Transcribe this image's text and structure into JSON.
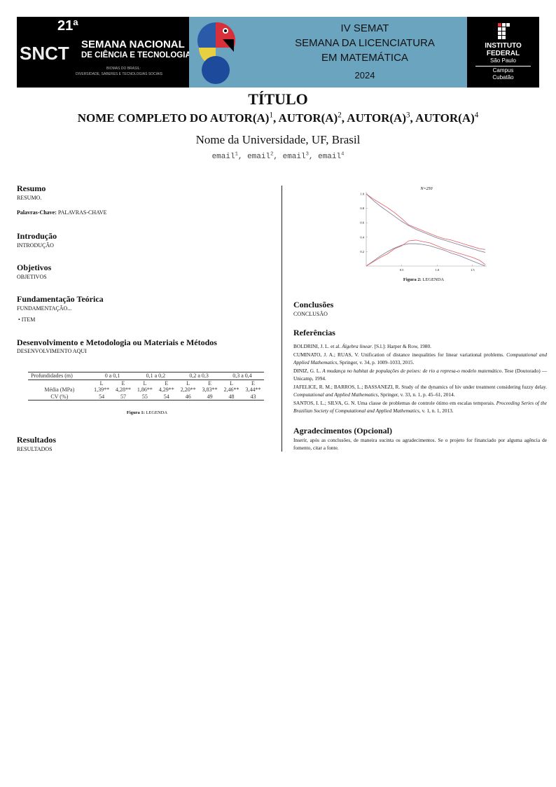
{
  "banner": {
    "edition": "21ª",
    "acronym": "SNCT",
    "snct_line1": "SEMANA NACIONAL",
    "snct_line2": "DE CIÊNCIA E TECNOLOGIA",
    "snct_line3": "BIOMAS DO BRASIL:",
    "snct_line4": "DIVERSIDADE, SABERES E TECNOLOGIAS SOCIAIS",
    "event_line1": "IV SEMAT",
    "event_line2": "SEMANA DA LICENCIATURA",
    "event_line3": "EM MATEMÁTICA",
    "event_year": "2024",
    "if_line1": "INSTITUTO",
    "if_line2": "FEDERAL",
    "if_line3": "São Paulo",
    "if_campus1": "Campus",
    "if_campus2": "Cubatão",
    "colors": {
      "left": "#000000",
      "middle": "#6aa4bf",
      "right": "#000000"
    }
  },
  "header": {
    "title": "TÍTULO",
    "authors": [
      {
        "name": "NOME COMPLETO DO AUTOR(A)",
        "sup": "1"
      },
      {
        "name": ", AUTOR(A)",
        "sup": "2"
      },
      {
        "name": ", AUTOR(A)",
        "sup": "3"
      },
      {
        "name": ", AUTOR(A)",
        "sup": "4"
      }
    ],
    "university": "Nome da Universidade, UF, Brasil",
    "emails": [
      {
        "e": "email",
        "sup": "1"
      },
      {
        "e": ", email",
        "sup": "2"
      },
      {
        "e": ", email",
        "sup": "3"
      },
      {
        "e": ", email",
        "sup": "4"
      }
    ]
  },
  "left": {
    "resumo_h": "Resumo",
    "resumo": "RESUMO.",
    "kw_label": "Palavras-Chave:",
    "kw": " PALAVRAS-CHAVE",
    "intro_h": "Introdução",
    "intro": "INTRODUÇÃO",
    "obj_h": "Objetivos",
    "obj": "OBJETIVOS",
    "fund_h": "Fundamentação Teórica",
    "fund": "FUNDAMENTAÇÃO...",
    "item": "• ITEM",
    "dev_h": "Desenvolvimento e Metodologia ou Materiais e Métodos",
    "dev": "DESENVOLVIMENTO AQUI",
    "fig1_label": "Figura 1:",
    "fig1": " LEGENDA",
    "res_h": "Resultados",
    "res": "RESULTADOS"
  },
  "table": {
    "header": [
      "Profundidades (m)",
      "0 a 0,1",
      "0,1 a 0,2",
      "0,2 a 0,3",
      "0,3 a 0,4"
    ],
    "sub": [
      "",
      "L",
      "E",
      "L",
      "E",
      "L",
      "E",
      "L",
      "E"
    ],
    "rows": [
      [
        "Média (MPa)",
        "1,39**",
        "4,28**",
        "1,86**",
        "4,29**",
        "2,20**",
        "3,83**",
        "2,46**",
        "3,44**"
      ],
      [
        "CV (%)",
        "54",
        "57",
        "55",
        "54",
        "46",
        "49",
        "48",
        "43"
      ]
    ]
  },
  "chart_data": {
    "type": "line",
    "title": "N=250",
    "xlabel": "",
    "ylabel": "",
    "xlim": [
      0,
      1.7
    ],
    "ylim": [
      0,
      1.0
    ],
    "xticks": [
      "0.5",
      "1.0",
      "1.5"
    ],
    "yticks": [
      "0.2",
      "0.4",
      "0.6",
      "0.8",
      "1.0"
    ],
    "x": [
      0,
      0.1,
      0.2,
      0.3,
      0.4,
      0.5,
      0.6,
      0.7,
      0.8,
      0.9,
      1.0,
      1.1,
      1.2,
      1.3,
      1.4,
      1.5,
      1.6,
      1.68
    ],
    "series": [
      {
        "color": "#7a7a9a",
        "values": [
          1.0,
          0.91,
          0.83,
          0.76,
          0.69,
          0.62,
          0.56,
          0.51,
          0.47,
          0.43,
          0.39,
          0.36,
          0.33,
          0.3,
          0.27,
          0.24,
          0.21,
          0.19
        ]
      },
      {
        "color": "#e06060",
        "values": [
          1.0,
          0.93,
          0.87,
          0.81,
          0.74,
          0.66,
          0.57,
          0.53,
          0.49,
          0.45,
          0.41,
          0.38,
          0.36,
          0.33,
          0.3,
          0.27,
          0.24,
          0.23
        ]
      },
      {
        "color": "#7a7a9a",
        "values": [
          0,
          0.07,
          0.14,
          0.2,
          0.25,
          0.29,
          0.31,
          0.31,
          0.3,
          0.28,
          0.25,
          0.22,
          0.18,
          0.15,
          0.11,
          0.07,
          0.03,
          0
        ]
      },
      {
        "color": "#e06060",
        "values": [
          0,
          0.06,
          0.12,
          0.17,
          0.24,
          0.28,
          0.35,
          0.36,
          0.34,
          0.32,
          0.28,
          0.24,
          0.21,
          0.18,
          0.15,
          0.12,
          0.08,
          0.02
        ]
      }
    ]
  },
  "right": {
    "fig2_label": "Figura 2:",
    "fig2": " LEGENDA",
    "conc_h": "Conclusões",
    "conc": "CONCLUSÃO",
    "ref_h": "Referências",
    "refs": [
      {
        "a": "BOLDRINI, J. L. et al. ",
        "i": "Álgebra linear",
        "b": ". [S.l.]: Harper & Row, 1980."
      },
      {
        "a": "CUMINATO, J. A.; RUAS, V. Unification of distance inequalities for linear variational problems. ",
        "i": "Computational and Applied Mathematics",
        "b": ", Springer, v. 34, p. 1009–1033, 2015."
      },
      {
        "a": "DINIZ, G. L. ",
        "i": "A mudança no habitat de populações de peixes: de rio a represa-o modelo matemático",
        "b": ". Tese (Doutorado) — Unicamp, 1994."
      },
      {
        "a": "JAFELICE, R. M.; BARROS, L.; BASSANEZI, R. Study of the dynamics of hiv under treatment considering fuzzy delay. ",
        "i": "Computational and Applied Mathematics",
        "b": ", Springer, v. 33, n. 1, p. 45–61, 2014."
      },
      {
        "a": "SANTOS, I. L.; SILVA, G. N. Uma classe de problemas de controle ótimo em escalas temporais. ",
        "i": "Proceeding Series of the Brazilian Society of Computational and Applied Mathematics",
        "b": ", v. 1, n. 1, 2013."
      }
    ],
    "ack_h": "Agradecimentos (Opcional)",
    "ack": "Inserir, após as conclusões, de maneira sucinta os agradecimentos.  Se o projeto for financiado por alguma agência de fomento, citar a fonte."
  }
}
